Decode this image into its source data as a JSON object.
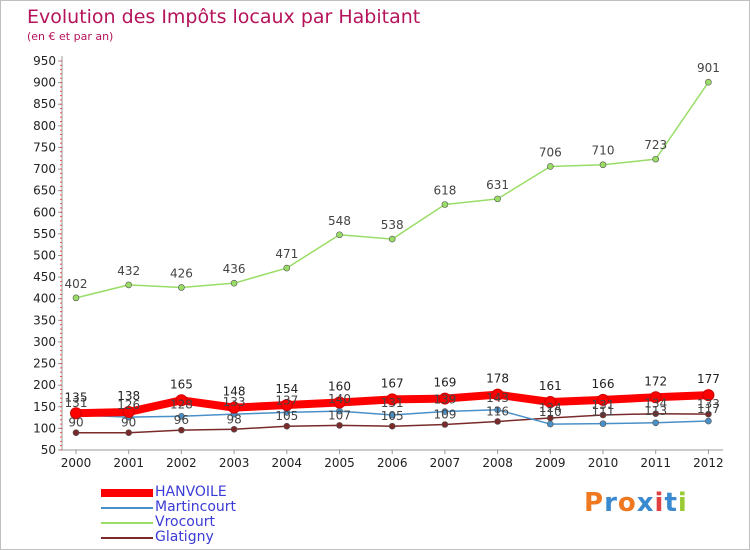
{
  "header": {
    "title": "Evolution des Impôts locaux par Habitant",
    "subtitle": "(en € et par an)"
  },
  "chart_data": {
    "type": "line",
    "title": "Evolution des Impôts locaux par Habitant",
    "subtitle": "(en € et par an)",
    "x": [
      "2000",
      "2001",
      "2002",
      "2003",
      "2004",
      "2005",
      "2006",
      "2007",
      "2008",
      "2009",
      "2010",
      "2011",
      "2012"
    ],
    "ylim": [
      50,
      950
    ],
    "yticks": [
      50,
      100,
      150,
      200,
      250,
      300,
      350,
      400,
      450,
      500,
      550,
      600,
      650,
      700,
      750,
      800,
      850,
      900,
      950
    ],
    "grid": false,
    "legend_placement": "bottom-left",
    "series": [
      {
        "name": "HANVOILE",
        "color": "#ff0000",
        "values": [
          135,
          138,
          165,
          148,
          154,
          160,
          167,
          169,
          178,
          161,
          166,
          172,
          177
        ]
      },
      {
        "name": "Martincourt",
        "color": "#4a90c8",
        "values": [
          131,
          126,
          128,
          133,
          137,
          140,
          131,
          139,
          143,
          110,
          111,
          113,
          117
        ]
      },
      {
        "name": "Vrocourt",
        "color": "#99dd66",
        "values": [
          402,
          432,
          426,
          436,
          471,
          548,
          538,
          618,
          631,
          706,
          710,
          723,
          901
        ]
      },
      {
        "name": "Glatigny",
        "color": "#7a2a2a",
        "values": [
          90,
          90,
          96,
          98,
          105,
          107,
          105,
          109,
          116,
          124,
          131,
          134,
          133
        ]
      }
    ]
  },
  "logo": {
    "text": "Proxiti",
    "letters": [
      "P",
      "r",
      "o",
      "x",
      "i",
      "t",
      "i"
    ],
    "colors": [
      "#f07820",
      "#3a8ad0",
      "#f07820",
      "#3a8ad0",
      "#e04040",
      "#3a8ad0",
      "#99cc33"
    ]
  }
}
